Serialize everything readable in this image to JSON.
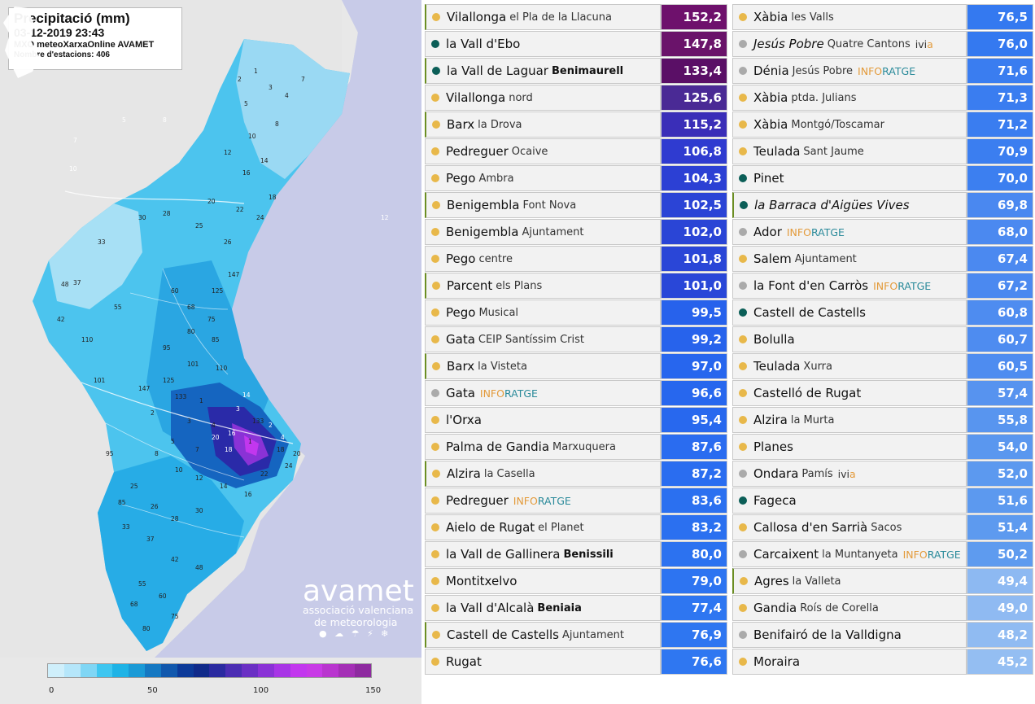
{
  "map": {
    "title": "Precipitació (mm)",
    "datetime": "03-12-2019 23:43",
    "source": "MXO meteoXarxaOnline AVAMET",
    "station_count": "Nombre d'estacions: 406",
    "logo": {
      "name": "avamet",
      "line1": "associació valenciana",
      "line2": "de meteorologia",
      "icons": "● ☁ ☂ ⚡ ❄"
    },
    "scale": {
      "colors": [
        "#cfeffb",
        "#b5e6fa",
        "#7fd6f5",
        "#3ec6f0",
        "#1eb3e6",
        "#1a9ad6",
        "#1578c2",
        "#1158ad",
        "#0c3a99",
        "#102a8a",
        "#2a2aa0",
        "#4b2db3",
        "#6a2fc4",
        "#8a32d6",
        "#a835e6",
        "#c237ee",
        "#c83ae6",
        "#b935cf",
        "#a42fb6",
        "#8e2aa0"
      ],
      "labels": [
        "0",
        "50",
        "100",
        "150"
      ]
    },
    "numbers": [
      "1",
      "2",
      "3",
      "4",
      "5",
      "7",
      "8",
      "10",
      "12",
      "14",
      "16",
      "18",
      "20",
      "22",
      "24",
      "25",
      "26",
      "28",
      "30",
      "33",
      "37",
      "42",
      "48",
      "55",
      "60",
      "68",
      "75",
      "80",
      "85",
      "95",
      "101",
      "110",
      "125",
      "147",
      "133"
    ]
  },
  "left_table": [
    {
      "name": "Vilallonga",
      "sub": "el Pla de la Llacuna",
      "sub_bold": false,
      "tag": "",
      "value": "152,2",
      "dot": "#e8b84a",
      "marked": true,
      "bg": "#6e116c"
    },
    {
      "name": "la Vall d'Ebo",
      "sub": "",
      "sub_bold": false,
      "tag": "",
      "value": "147,8",
      "dot": "#0b5e57",
      "marked": false,
      "bg": "#6a136a"
    },
    {
      "name": "la Vall de Laguar",
      "sub": "Benimaurell",
      "sub_bold": true,
      "tag": "",
      "value": "133,4",
      "dot": "#0b5e57",
      "marked": true,
      "bg": "#5a0f66"
    },
    {
      "name": "Vilallonga",
      "sub": "nord",
      "sub_bold": false,
      "tag": "",
      "value": "125,6",
      "dot": "#e8b84a",
      "marked": false,
      "bg": "#4a2a95"
    },
    {
      "name": "Barx",
      "sub": "la Drova",
      "sub_bold": false,
      "tag": "",
      "value": "115,2",
      "dot": "#e8b84a",
      "marked": true,
      "bg": "#3a2eb8"
    },
    {
      "name": "Pedreguer",
      "sub": "Ocaive",
      "sub_bold": false,
      "tag": "",
      "value": "106,8",
      "dot": "#e8b84a",
      "marked": false,
      "bg": "#2f3bd0"
    },
    {
      "name": "Pego",
      "sub": "Ambra",
      "sub_bold": false,
      "tag": "",
      "value": "104,3",
      "dot": "#e8b84a",
      "marked": false,
      "bg": "#2c40d4"
    },
    {
      "name": "Benigembla",
      "sub": "Font Nova",
      "sub_bold": false,
      "tag": "",
      "value": "102,5",
      "dot": "#e8b84a",
      "marked": true,
      "bg": "#2b44d6"
    },
    {
      "name": "Benigembla",
      "sub": "Ajuntament",
      "sub_bold": false,
      "tag": "",
      "value": "102,0",
      "dot": "#e8b84a",
      "marked": false,
      "bg": "#2a45d6"
    },
    {
      "name": "Pego",
      "sub": "centre",
      "sub_bold": false,
      "tag": "",
      "value": "101,8",
      "dot": "#e8b84a",
      "marked": false,
      "bg": "#2a46d7"
    },
    {
      "name": "Parcent",
      "sub": "els Plans",
      "sub_bold": false,
      "tag": "",
      "value": "101,0",
      "dot": "#e8b84a",
      "marked": true,
      "bg": "#2947d8"
    },
    {
      "name": "Pego",
      "sub": "Musical",
      "sub_bold": false,
      "tag": "",
      "value": "99,5",
      "dot": "#e8b84a",
      "marked": false,
      "bg": "#2762ec"
    },
    {
      "name": "Gata",
      "sub": "CEIP Santíssim Crist",
      "sub_bold": false,
      "tag": "",
      "value": "99,2",
      "dot": "#e8b84a",
      "marked": false,
      "bg": "#2763ec"
    },
    {
      "name": "Barx",
      "sub": "la Visteta",
      "sub_bold": false,
      "tag": "",
      "value": "97,0",
      "dot": "#e8b84a",
      "marked": true,
      "bg": "#2766ee"
    },
    {
      "name": "Gata",
      "sub": "",
      "sub_bold": false,
      "tag": "INFORATGE",
      "value": "96,6",
      "dot": "#aaaaaa",
      "marked": false,
      "bg": "#2767ee"
    },
    {
      "name": "l'Orxa",
      "sub": "",
      "sub_bold": false,
      "tag": "",
      "value": "95,4",
      "dot": "#e8b84a",
      "marked": false,
      "bg": "#2868ee"
    },
    {
      "name": "Palma de Gandia",
      "sub": "Marxuquera",
      "sub_bold": false,
      "tag": "",
      "value": "87,6",
      "dot": "#e8b84a",
      "marked": false,
      "bg": "#2a6cf0"
    },
    {
      "name": "Alzira",
      "sub": "la Casella",
      "sub_bold": false,
      "tag": "",
      "value": "87,2",
      "dot": "#e8b84a",
      "marked": true,
      "bg": "#2a6df0"
    },
    {
      "name": "Pedreguer",
      "sub": "",
      "sub_bold": false,
      "tag": "INFORATGE",
      "value": "83,6",
      "dot": "#e8b84a",
      "marked": false,
      "bg": "#2b70f0"
    },
    {
      "name": "Aielo de Rugat",
      "sub": "el Planet",
      "sub_bold": false,
      "tag": "",
      "value": "83,2",
      "dot": "#e8b84a",
      "marked": false,
      "bg": "#2b70f0"
    },
    {
      "name": "la Vall de Gallinera",
      "sub": "Benissili",
      "sub_bold": true,
      "tag": "",
      "value": "80,0",
      "dot": "#e8b84a",
      "marked": false,
      "bg": "#2c72f0"
    },
    {
      "name": "Montitxelvo",
      "sub": "",
      "sub_bold": false,
      "tag": "",
      "value": "79,0",
      "dot": "#e8b84a",
      "marked": false,
      "bg": "#2d74f1"
    },
    {
      "name": "la Vall d'Alcalà",
      "sub": "Beniaia",
      "sub_bold": true,
      "tag": "",
      "value": "77,4",
      "dot": "#e8b84a",
      "marked": false,
      "bg": "#2e76f1"
    },
    {
      "name": "Castell de Castells",
      "sub": "Ajuntament",
      "sub_bold": false,
      "tag": "",
      "value": "76,9",
      "dot": "#e8b84a",
      "marked": true,
      "bg": "#2e76f1"
    },
    {
      "name": "Rugat",
      "sub": "",
      "sub_bold": false,
      "tag": "",
      "value": "76,6",
      "dot": "#e8b84a",
      "marked": false,
      "bg": "#2f77f1"
    }
  ],
  "right_table": [
    {
      "name": "Xàbia",
      "sub": "les Valls",
      "sub_bold": false,
      "tag": "",
      "value": "76,5",
      "dot": "#e8b84a",
      "marked": false,
      "italic": false,
      "bg": "#3479f0"
    },
    {
      "name": "Jesús Pobre",
      "sub": "Quatre Cantons",
      "sub_bold": false,
      "tag": "ivia",
      "value": "76,0",
      "dot": "#aaaaaa",
      "marked": false,
      "italic": true,
      "bg": "#3479f0"
    },
    {
      "name": "Dénia",
      "sub": "Jesús Pobre",
      "sub_bold": false,
      "tag": "INFORATGE",
      "value": "71,6",
      "dot": "#aaaaaa",
      "marked": false,
      "italic": false,
      "bg": "#3a7df0"
    },
    {
      "name": "Xàbia",
      "sub": "ptda. Julians",
      "sub_bold": false,
      "tag": "",
      "value": "71,3",
      "dot": "#e8b84a",
      "marked": false,
      "italic": false,
      "bg": "#3a7df0"
    },
    {
      "name": "Xàbia",
      "sub": "Montgó/Toscamar",
      "sub_bold": false,
      "tag": "",
      "value": "71,2",
      "dot": "#e8b84a",
      "marked": false,
      "italic": false,
      "bg": "#3a7df0"
    },
    {
      "name": "Teulada",
      "sub": "Sant Jaume",
      "sub_bold": false,
      "tag": "",
      "value": "70,9",
      "dot": "#e8b84a",
      "marked": false,
      "italic": false,
      "bg": "#3b7ef0"
    },
    {
      "name": "Pinet",
      "sub": "",
      "sub_bold": false,
      "tag": "",
      "value": "70,0",
      "dot": "#0b5e57",
      "marked": false,
      "italic": false,
      "bg": "#3c7ff0"
    },
    {
      "name": "la Barraca d'Aigües Vives",
      "sub": "",
      "sub_bold": false,
      "tag": "",
      "value": "69,8",
      "dot": "#0b5e57",
      "marked": true,
      "italic": true,
      "bg": "#4a88f0"
    },
    {
      "name": "Ador",
      "sub": "",
      "sub_bold": false,
      "tag": "INFORATGE",
      "value": "68,0",
      "dot": "#aaaaaa",
      "marked": false,
      "italic": false,
      "bg": "#4b89f0"
    },
    {
      "name": "Salem",
      "sub": "Ajuntament",
      "sub_bold": false,
      "tag": "",
      "value": "67,4",
      "dot": "#e8b84a",
      "marked": false,
      "italic": false,
      "bg": "#4b89f0"
    },
    {
      "name": "la Font d'en Carròs",
      "sub": "",
      "sub_bold": false,
      "tag": "INFORATGE",
      "value": "67,2",
      "dot": "#aaaaaa",
      "marked": false,
      "italic": false,
      "bg": "#4b89f0"
    },
    {
      "name": "Castell de Castells",
      "sub": "",
      "sub_bold": false,
      "tag": "",
      "value": "60,8",
      "dot": "#0b5e57",
      "marked": false,
      "italic": false,
      "bg": "#4e8cf0"
    },
    {
      "name": "Bolulla",
      "sub": "",
      "sub_bold": false,
      "tag": "",
      "value": "60,7",
      "dot": "#e8b84a",
      "marked": false,
      "italic": false,
      "bg": "#4e8cf0"
    },
    {
      "name": "Teulada",
      "sub": "Xurra",
      "sub_bold": false,
      "tag": "",
      "value": "60,5",
      "dot": "#e8b84a",
      "marked": false,
      "italic": false,
      "bg": "#4e8cf0"
    },
    {
      "name": "Castelló de Rugat",
      "sub": "",
      "sub_bold": false,
      "tag": "",
      "value": "57,4",
      "dot": "#e8b84a",
      "marked": false,
      "italic": false,
      "bg": "#5793ef"
    },
    {
      "name": "Alzira",
      "sub": "la Murta",
      "sub_bold": false,
      "tag": "",
      "value": "55,8",
      "dot": "#e8b84a",
      "marked": false,
      "italic": false,
      "bg": "#5895ef"
    },
    {
      "name": "Planes",
      "sub": "",
      "sub_bold": false,
      "tag": "",
      "value": "54,0",
      "dot": "#e8b84a",
      "marked": false,
      "italic": false,
      "bg": "#5a97ef"
    },
    {
      "name": "Ondara",
      "sub": "Pamís",
      "sub_bold": false,
      "tag": "ivia",
      "value": "52,0",
      "dot": "#aaaaaa",
      "marked": false,
      "italic": false,
      "bg": "#5c99ef"
    },
    {
      "name": "Fageca",
      "sub": "",
      "sub_bold": false,
      "tag": "",
      "value": "51,6",
      "dot": "#0b5e57",
      "marked": false,
      "italic": false,
      "bg": "#5c99ef"
    },
    {
      "name": "Callosa d'en Sarrià",
      "sub": "Sacos",
      "sub_bold": false,
      "tag": "",
      "value": "51,4",
      "dot": "#e8b84a",
      "marked": false,
      "italic": false,
      "bg": "#5d9aef"
    },
    {
      "name": "Carcaixent",
      "sub": "la Muntanyeta",
      "sub_bold": false,
      "tag": "INFORATGE",
      "value": "50,2",
      "dot": "#aaaaaa",
      "marked": false,
      "italic": false,
      "bg": "#5e9bef"
    },
    {
      "name": "Agres",
      "sub": "la Valleta",
      "sub_bold": false,
      "tag": "",
      "value": "49,4",
      "dot": "#e8b84a",
      "marked": true,
      "italic": false,
      "bg": "#8db9f2"
    },
    {
      "name": "Gandia",
      "sub": "Roís de Corella",
      "sub_bold": false,
      "tag": "",
      "value": "49,0",
      "dot": "#e8b84a",
      "marked": false,
      "italic": false,
      "bg": "#8fbaf2"
    },
    {
      "name": "Benifairó de la Valldigna",
      "sub": "",
      "sub_bold": false,
      "tag": "",
      "value": "48,2",
      "dot": "#aaaaaa",
      "marked": false,
      "italic": false,
      "bg": "#90bbf2"
    },
    {
      "name": "Moraira",
      "sub": "",
      "sub_bold": false,
      "tag": "",
      "value": "45,2",
      "dot": "#e8b84a",
      "marked": false,
      "italic": false,
      "bg": "#94bef2"
    }
  ]
}
